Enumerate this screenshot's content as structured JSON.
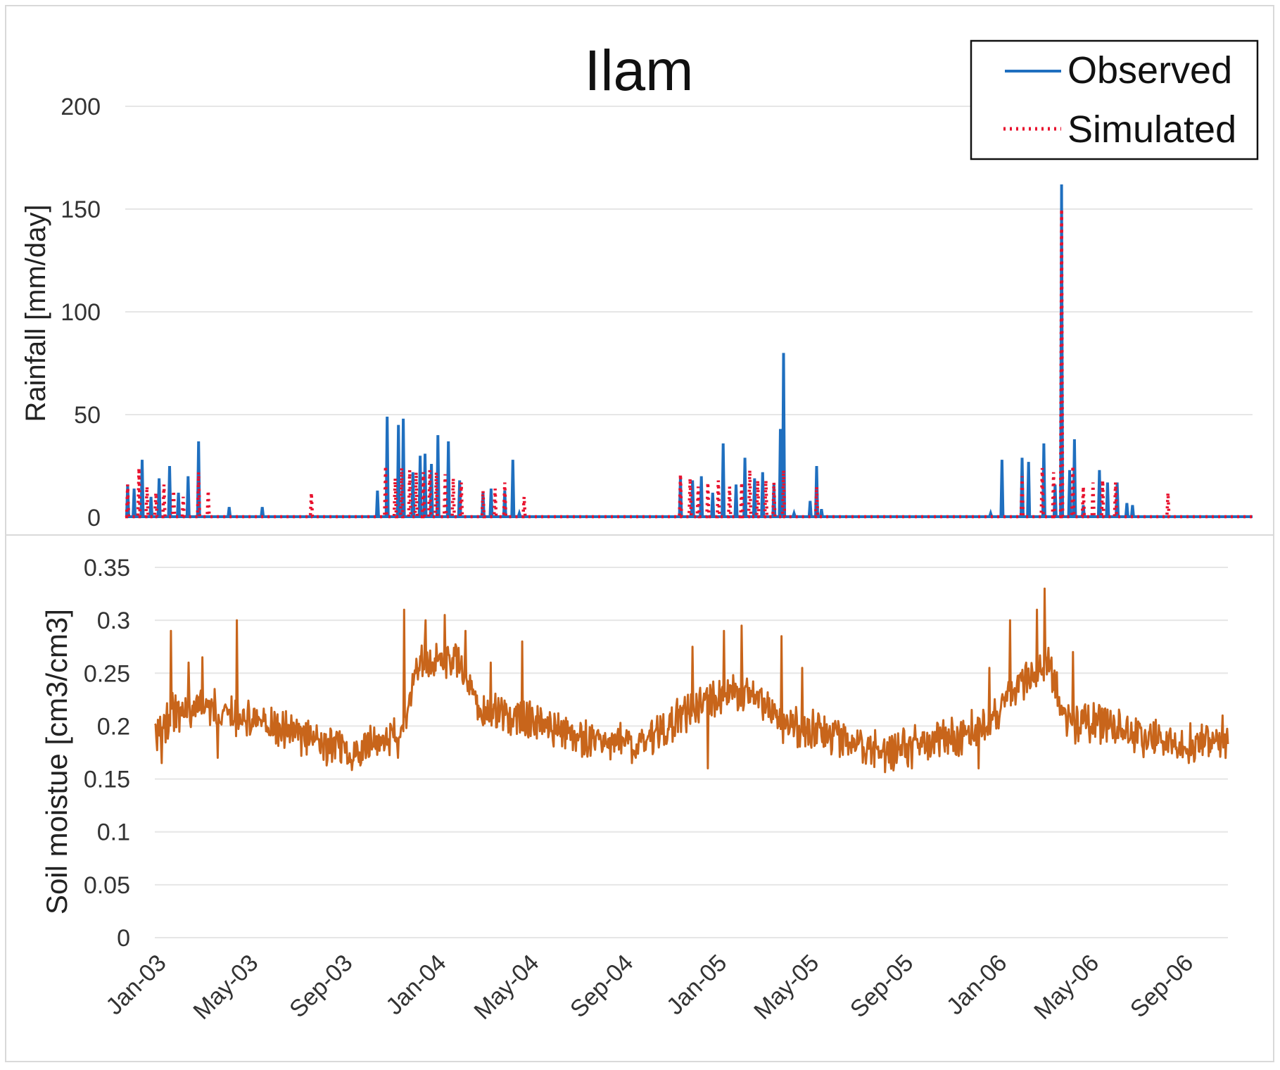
{
  "chart_data": [
    {
      "type": "line",
      "title": "Ilam",
      "xlabel": "",
      "ylabel": "Rainfall [mm/day]",
      "ylim": [
        0,
        200
      ],
      "yticks": [
        "0",
        "50",
        "100",
        "150",
        "200"
      ],
      "legend_position": "top-right",
      "series": [
        {
          "name": "Observed",
          "style": "solid",
          "color": "#1f6fbf",
          "x_range": [
            "2003-01-01",
            "2006-10-31"
          ],
          "peaks": [
            [
              "2003-01-04",
              16
            ],
            [
              "2003-01-12",
              14
            ],
            [
              "2003-01-22",
              28
            ],
            [
              "2003-02-02",
              10
            ],
            [
              "2003-02-12",
              19
            ],
            [
              "2003-02-25",
              25
            ],
            [
              "2003-03-08",
              12
            ],
            [
              "2003-03-20",
              20
            ],
            [
              "2003-04-02",
              37
            ],
            [
              "2003-05-10",
              5
            ],
            [
              "2003-06-20",
              5
            ],
            [
              "2003-11-10",
              13
            ],
            [
              "2003-11-22",
              49
            ],
            [
              "2003-12-06",
              45
            ],
            [
              "2003-12-12",
              48
            ],
            [
              "2003-12-24",
              22
            ],
            [
              "2004-01-02",
              30
            ],
            [
              "2004-01-08",
              31
            ],
            [
              "2004-01-16",
              26
            ],
            [
              "2004-01-24",
              40
            ],
            [
              "2004-02-06",
              37
            ],
            [
              "2004-02-20",
              18
            ],
            [
              "2004-03-20",
              12
            ],
            [
              "2004-03-30",
              14
            ],
            [
              "2004-04-16",
              13
            ],
            [
              "2004-04-26",
              28
            ],
            [
              "2004-05-04",
              2
            ],
            [
              "2004-11-20",
              20
            ],
            [
              "2004-12-05",
              18
            ],
            [
              "2004-12-16",
              20
            ],
            [
              "2004-12-30",
              12
            ],
            [
              "2005-01-12",
              36
            ],
            [
              "2005-01-28",
              16
            ],
            [
              "2005-02-08",
              29
            ],
            [
              "2005-02-20",
              19
            ],
            [
              "2005-03-02",
              22
            ],
            [
              "2005-03-16",
              16
            ],
            [
              "2005-03-24",
              43
            ],
            [
              "2005-03-28",
              80
            ],
            [
              "2005-04-10",
              2
            ],
            [
              "2005-04-30",
              8
            ],
            [
              "2005-05-08",
              25
            ],
            [
              "2005-05-14",
              4
            ],
            [
              "2005-12-10",
              2
            ],
            [
              "2005-12-24",
              28
            ],
            [
              "2006-01-18",
              29
            ],
            [
              "2006-01-26",
              27
            ],
            [
              "2006-02-14",
              36
            ],
            [
              "2006-02-28",
              16
            ],
            [
              "2006-03-08",
              162
            ],
            [
              "2006-03-18",
              23
            ],
            [
              "2006-03-24",
              38
            ],
            [
              "2006-04-04",
              6
            ],
            [
              "2006-04-24",
              23
            ],
            [
              "2006-05-04",
              17
            ],
            [
              "2006-05-16",
              17
            ],
            [
              "2006-05-28",
              7
            ],
            [
              "2006-06-04",
              6
            ]
          ]
        },
        {
          "name": "Simulated",
          "style": "dotted",
          "color": "#e8112d",
          "x_range": [
            "2003-01-01",
            "2006-10-31"
          ],
          "peaks": [
            [
              "2003-01-04",
              16
            ],
            [
              "2003-01-18",
              24
            ],
            [
              "2003-01-28",
              15
            ],
            [
              "2003-02-08",
              12
            ],
            [
              "2003-02-18",
              16
            ],
            [
              "2003-03-02",
              13
            ],
            [
              "2003-03-14",
              10
            ],
            [
              "2003-04-02",
              22
            ],
            [
              "2003-04-14",
              13
            ],
            [
              "2003-08-20",
              12
            ],
            [
              "2003-11-20",
              25
            ],
            [
              "2003-12-02",
              19
            ],
            [
              "2003-12-10",
              24
            ],
            [
              "2003-12-20",
              23
            ],
            [
              "2003-12-28",
              22
            ],
            [
              "2004-01-06",
              22
            ],
            [
              "2004-01-14",
              23
            ],
            [
              "2004-01-22",
              22
            ],
            [
              "2004-02-02",
              21
            ],
            [
              "2004-02-12",
              19
            ],
            [
              "2004-02-22",
              17
            ],
            [
              "2004-03-20",
              13
            ],
            [
              "2004-04-04",
              14
            ],
            [
              "2004-04-16",
              17
            ],
            [
              "2004-05-10",
              10
            ],
            [
              "2004-11-20",
              21
            ],
            [
              "2004-12-02",
              19
            ],
            [
              "2004-12-12",
              15
            ],
            [
              "2004-12-24",
              17
            ],
            [
              "2005-01-06",
              18
            ],
            [
              "2005-01-20",
              15
            ],
            [
              "2005-02-04",
              17
            ],
            [
              "2005-02-14",
              23
            ],
            [
              "2005-02-24",
              18
            ],
            [
              "2005-03-06",
              18
            ],
            [
              "2005-03-16",
              17
            ],
            [
              "2005-03-28",
              23
            ],
            [
              "2005-05-08",
              15
            ],
            [
              "2006-01-18",
              20
            ],
            [
              "2006-02-12",
              24
            ],
            [
              "2006-02-26",
              22
            ],
            [
              "2006-03-08",
              150
            ],
            [
              "2006-03-22",
              25
            ],
            [
              "2006-04-04",
              15
            ],
            [
              "2006-04-16",
              17
            ],
            [
              "2006-04-28",
              18
            ],
            [
              "2006-05-14",
              17
            ],
            [
              "2006-07-18",
              12
            ]
          ]
        }
      ]
    },
    {
      "type": "line",
      "title": "",
      "xlabel": "",
      "ylabel": "Soil moistue [cm3/cm3]",
      "ylim": [
        0,
        0.35
      ],
      "yticks": [
        "0",
        "0.05",
        "0.1",
        "0.15",
        "0.2",
        "0.25",
        "0.3",
        "0.35"
      ],
      "xticks": [
        "Jan-03",
        "May-03",
        "Sep-03",
        "Jan-04",
        "May-04",
        "Sep-04",
        "Jan-05",
        "May-05",
        "Sep-05",
        "Jan-06",
        "May-06",
        "Sep-06"
      ],
      "series": [
        {
          "name": "Soil moisture",
          "style": "solid",
          "color": "#c8651b",
          "x_range": [
            "2003-01-01",
            "2006-10-31"
          ],
          "baseline": [
            [
              "2003-01-01",
              0.185
            ],
            [
              "2003-01-20",
              0.21
            ],
            [
              "2003-03-01",
              0.22
            ],
            [
              "2003-04-15",
              0.21
            ],
            [
              "2003-06-15",
              0.2
            ],
            [
              "2003-08-01",
              0.185
            ],
            [
              "2003-09-15",
              0.175
            ],
            [
              "2003-11-01",
              0.19
            ],
            [
              "2003-11-20",
              0.2
            ],
            [
              "2003-12-10",
              0.26
            ],
            [
              "2004-02-01",
              0.265
            ],
            [
              "2004-02-28",
              0.215
            ],
            [
              "2004-04-15",
              0.21
            ],
            [
              "2004-06-01",
              0.2
            ],
            [
              "2004-08-01",
              0.185
            ],
            [
              "2004-10-01",
              0.185
            ],
            [
              "2004-11-20",
              0.21
            ],
            [
              "2004-12-20",
              0.225
            ],
            [
              "2005-02-15",
              0.235
            ],
            [
              "2005-04-05",
              0.2
            ],
            [
              "2005-06-15",
              0.19
            ],
            [
              "2005-08-15",
              0.175
            ],
            [
              "2005-10-01",
              0.185
            ],
            [
              "2005-11-15",
              0.19
            ],
            [
              "2005-12-15",
              0.2
            ],
            [
              "2006-02-01",
              0.24
            ],
            [
              "2006-03-10",
              0.26
            ],
            [
              "2006-04-01",
              0.205
            ],
            [
              "2006-06-01",
              0.2
            ],
            [
              "2006-08-01",
              0.185
            ],
            [
              "2006-10-31",
              0.185
            ]
          ],
          "spikes": [
            [
              "2003-01-10",
              0.165
            ],
            [
              "2003-01-22",
              0.29
            ],
            [
              "2003-02-14",
              0.26
            ],
            [
              "2003-03-04",
              0.265
            ],
            [
              "2003-03-24",
              0.17
            ],
            [
              "2003-04-18",
              0.3
            ],
            [
              "2003-09-10",
              0.165
            ],
            [
              "2003-11-14",
              0.17
            ],
            [
              "2003-11-22",
              0.31
            ],
            [
              "2003-12-20",
              0.3
            ],
            [
              "2004-01-14",
              0.305
            ],
            [
              "2004-02-10",
              0.29
            ],
            [
              "2004-03-14",
              0.26
            ],
            [
              "2004-04-24",
              0.28
            ],
            [
              "2004-09-14",
              0.165
            ],
            [
              "2004-12-02",
              0.275
            ],
            [
              "2004-12-22",
              0.16
            ],
            [
              "2005-01-12",
              0.29
            ],
            [
              "2005-02-04",
              0.295
            ],
            [
              "2005-03-28",
              0.285
            ],
            [
              "2005-04-24",
              0.255
            ],
            [
              "2005-09-14",
              0.16
            ],
            [
              "2005-11-20",
              0.205
            ],
            [
              "2005-12-10",
              0.16
            ],
            [
              "2005-12-24",
              0.255
            ],
            [
              "2006-01-20",
              0.3
            ],
            [
              "2006-02-24",
              0.31
            ],
            [
              "2006-03-06",
              0.33
            ],
            [
              "2006-04-12",
              0.27
            ],
            [
              "2006-09-10",
              0.165
            ],
            [
              "2006-10-24",
              0.21
            ]
          ]
        }
      ]
    }
  ]
}
